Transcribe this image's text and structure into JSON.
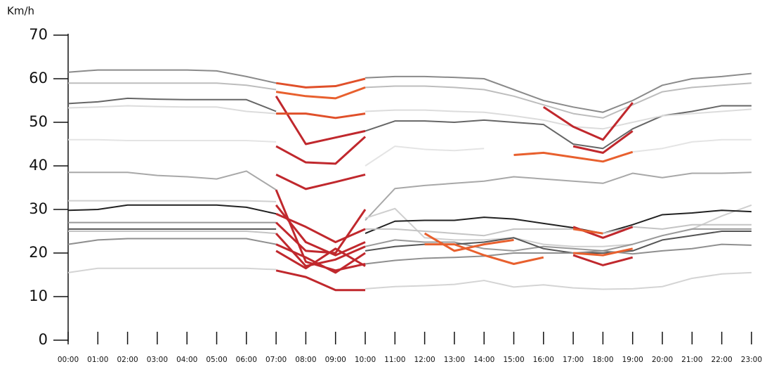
{
  "chart_data": {
    "type": "line",
    "y_label": "Km/h",
    "categories": [
      "00:00",
      "01:00",
      "02:00",
      "03:00",
      "04:00",
      "05:00",
      "06:00",
      "07:00",
      "08:00",
      "09:00",
      "10:00",
      "11:00",
      "12:00",
      "13:00",
      "14:00",
      "15:00",
      "16:00",
      "17:00",
      "18:00",
      "19:00",
      "20:00",
      "21:00",
      "22:00",
      "23:00"
    ],
    "ylim": [
      0,
      70
    ],
    "yticks": [
      0,
      10,
      20,
      30,
      40,
      50,
      60,
      70
    ],
    "series": [
      {
        "color": "#8a8a8a",
        "values": [
          61.5,
          62,
          62,
          62,
          62,
          61.8,
          60.5,
          59,
          null,
          null,
          60.2,
          60.5,
          60.5,
          60.3,
          60,
          57.5,
          55,
          53.5,
          52.3,
          55,
          58.5,
          60,
          60.5,
          61.2
        ]
      },
      {
        "color": "#bdbdbd",
        "values": [
          59,
          59,
          59,
          59,
          59,
          59,
          58.5,
          57.5,
          null,
          null,
          58,
          58.3,
          58.3,
          58,
          57.5,
          56,
          54,
          52,
          51,
          54,
          57,
          58,
          58.5,
          59
        ]
      },
      {
        "color": "#666666",
        "values": [
          54.3,
          54.7,
          55.5,
          55.3,
          55.2,
          55.2,
          55.2,
          52.5,
          null,
          null,
          48,
          50.3,
          50.3,
          50,
          50.5,
          50,
          49.5,
          45,
          44,
          48.5,
          51.5,
          52.5,
          53.8,
          53.8
        ]
      },
      {
        "color": "#dcdcdc",
        "values": [
          53.3,
          53.5,
          53.8,
          53.6,
          53.5,
          53.5,
          52.5,
          52,
          null,
          null,
          52.5,
          52.8,
          52.8,
          52.5,
          52.3,
          51.5,
          50.5,
          49,
          48.5,
          50,
          51.5,
          52,
          52.5,
          53
        ]
      },
      {
        "color": "#e4e4e4",
        "values": [
          46,
          46,
          45.8,
          45.8,
          45.8,
          45.8,
          45.8,
          45.5,
          null,
          null,
          40,
          44.5,
          43.8,
          43.5,
          44,
          null,
          null,
          null,
          null,
          43.2,
          44,
          45.5,
          46,
          46
        ]
      },
      {
        "color": "#a8a8a8",
        "values": [
          38.5,
          38.5,
          38.5,
          37.8,
          37.5,
          37,
          38.8,
          34.5,
          null,
          null,
          27.5,
          34.8,
          35.5,
          36,
          36.5,
          37.5,
          37,
          36.5,
          36,
          38.3,
          37.3,
          38.3,
          38.3,
          38.5
        ]
      },
      {
        "color": "#cfcfcf",
        "values": [
          32,
          32,
          32,
          32,
          32,
          32,
          32,
          31.8,
          null,
          null,
          28,
          30.2,
          23.5,
          23,
          23,
          23.5,
          22,
          21.5,
          21.5,
          22,
          24,
          25.5,
          28.5,
          31
        ]
      },
      {
        "color": "#222222",
        "values": [
          29.8,
          30,
          31,
          31,
          31,
          31,
          30.5,
          29,
          null,
          null,
          24.5,
          27.3,
          27.5,
          27.5,
          28.2,
          27.8,
          26.8,
          25.8,
          24.5,
          26.5,
          28.8,
          29.2,
          29.8,
          29.5
        ]
      },
      {
        "color": "#999999",
        "values": [
          27,
          27,
          27,
          27,
          27,
          27,
          27,
          27,
          null,
          null,
          21.5,
          23,
          22.5,
          22.5,
          21,
          20.5,
          21.5,
          21,
          20.5,
          22,
          24,
          25.5,
          25.5,
          25.5
        ]
      },
      {
        "color": "#555555",
        "values": [
          25.5,
          25.5,
          25.5,
          25.5,
          25.5,
          25.5,
          25.5,
          25.5,
          null,
          null,
          20.5,
          21.5,
          22,
          22,
          22.5,
          23.5,
          21,
          20,
          20,
          20.5,
          23,
          24,
          25,
          25
        ]
      },
      {
        "color": "#c4c4c4",
        "values": [
          25,
          25,
          25,
          25,
          25,
          25,
          25,
          24.5,
          null,
          null,
          25.5,
          25.5,
          25,
          24.5,
          24,
          25.5,
          25.5,
          25.5,
          24.5,
          26,
          25.5,
          26.5,
          26.5,
          26.5
        ]
      },
      {
        "color": "#8f8f8f",
        "values": [
          22,
          23,
          23.3,
          23.3,
          23.3,
          23.3,
          23.3,
          22,
          null,
          null,
          17.5,
          18.3,
          18.8,
          19,
          19.3,
          20,
          20,
          20,
          20.5,
          19.8,
          20.5,
          21,
          22,
          21.8
        ]
      },
      {
        "color": "#d4d4d4",
        "values": [
          15.5,
          16.5,
          16.5,
          16.5,
          16.5,
          16.5,
          16.5,
          16.2,
          null,
          null,
          11.8,
          12.3,
          12.5,
          12.8,
          13.7,
          12.2,
          12.7,
          12,
          11.7,
          11.8,
          12.3,
          14.2,
          15.2,
          15.5
        ]
      },
      {
        "color": "#e0502a",
        "values": [
          null,
          null,
          null,
          null,
          null,
          null,
          null,
          59,
          58,
          58.3,
          60,
          null,
          null,
          null,
          null,
          null,
          null,
          null,
          null,
          null,
          null,
          null,
          null,
          null
        ]
      },
      {
        "color": "#e8602e",
        "values": [
          null,
          null,
          null,
          null,
          null,
          null,
          null,
          57,
          56,
          55.5,
          58,
          null,
          null,
          null,
          null,
          null,
          null,
          null,
          null,
          null,
          null,
          null,
          null,
          null
        ]
      },
      {
        "color": "#c0282d",
        "values": [
          null,
          null,
          null,
          null,
          null,
          null,
          null,
          56,
          45,
          46.5,
          48,
          null,
          null,
          null,
          null,
          null,
          null,
          null,
          null,
          null,
          null,
          null,
          null,
          null
        ]
      },
      {
        "color": "#e0502a",
        "values": [
          null,
          null,
          null,
          null,
          null,
          null,
          null,
          52,
          52,
          51,
          52,
          null,
          null,
          null,
          null,
          null,
          null,
          null,
          null,
          null,
          null,
          null,
          null,
          null
        ]
      },
      {
        "color": "#c0282d",
        "values": [
          null,
          null,
          null,
          null,
          null,
          null,
          null,
          44.5,
          40.8,
          40.5,
          46.7,
          null,
          null,
          null,
          null,
          null,
          null,
          null,
          null,
          null,
          null,
          null,
          null,
          null
        ]
      },
      {
        "color": "#c0282d",
        "values": [
          null,
          null,
          null,
          null,
          null,
          null,
          null,
          38,
          34.7,
          36.3,
          38,
          null,
          null,
          null,
          null,
          null,
          null,
          null,
          null,
          null,
          null,
          null,
          null,
          null
        ]
      },
      {
        "color": "#c0282d",
        "values": [
          null,
          null,
          null,
          null,
          null,
          null,
          null,
          34.5,
          18,
          16,
          17.5,
          null,
          null,
          null,
          null,
          null,
          null,
          null,
          null,
          null,
          null,
          null,
          null,
          null
        ]
      },
      {
        "color": "#c0282d",
        "values": [
          null,
          null,
          null,
          null,
          null,
          null,
          null,
          31,
          22.5,
          19.5,
          22.5,
          null,
          null,
          null,
          null,
          null,
          null,
          null,
          null,
          null,
          null,
          null,
          null,
          null
        ]
      },
      {
        "color": "#c0282d",
        "values": [
          null,
          null,
          null,
          null,
          null,
          null,
          null,
          29,
          26,
          22.5,
          25.5,
          null,
          null,
          null,
          null,
          null,
          null,
          null,
          null,
          null,
          null,
          null,
          null,
          null
        ]
      },
      {
        "color": "#c0282d",
        "values": [
          null,
          null,
          null,
          null,
          null,
          null,
          null,
          27,
          20.5,
          20,
          30,
          null,
          null,
          null,
          null,
          null,
          null,
          null,
          null,
          null,
          null,
          null,
          null,
          null
        ]
      },
      {
        "color": "#c0282d",
        "values": [
          null,
          null,
          null,
          null,
          null,
          null,
          null,
          24.5,
          17,
          18.5,
          21.5,
          null,
          null,
          null,
          null,
          null,
          null,
          null,
          null,
          null,
          null,
          null,
          null,
          null
        ]
      },
      {
        "color": "#c0282d",
        "values": [
          null,
          null,
          null,
          null,
          null,
          null,
          null,
          22,
          19,
          15.5,
          20,
          null,
          null,
          null,
          null,
          null,
          null,
          null,
          null,
          null,
          null,
          null,
          null,
          null
        ]
      },
      {
        "color": "#c0282d",
        "values": [
          null,
          null,
          null,
          null,
          null,
          null,
          null,
          20.5,
          16.5,
          21,
          17,
          null,
          null,
          null,
          null,
          null,
          null,
          null,
          null,
          null,
          null,
          null,
          null,
          null
        ]
      },
      {
        "color": "#c0282d",
        "values": [
          null,
          null,
          null,
          null,
          null,
          null,
          null,
          16,
          14.5,
          11.5,
          11.5,
          null,
          null,
          null,
          null,
          null,
          null,
          null,
          null,
          null,
          null,
          null,
          null,
          null
        ]
      },
      {
        "color": "#e8602e",
        "values": [
          null,
          null,
          null,
          null,
          null,
          null,
          null,
          null,
          null,
          null,
          null,
          null,
          24.5,
          20.5,
          22,
          23,
          null,
          null,
          null,
          null,
          null,
          null,
          null,
          null
        ]
      },
      {
        "color": "#e8602e",
        "values": [
          null,
          null,
          null,
          null,
          null,
          null,
          null,
          null,
          null,
          null,
          null,
          null,
          22,
          22,
          19.5,
          17.5,
          19,
          null,
          null,
          null,
          null,
          null,
          null,
          null
        ]
      },
      {
        "color": "#e8602e",
        "values": [
          null,
          null,
          null,
          null,
          null,
          null,
          null,
          null,
          null,
          null,
          null,
          null,
          null,
          null,
          null,
          42.5,
          43,
          42,
          41,
          43.2,
          null,
          null,
          null,
          null
        ]
      },
      {
        "color": "#c0282d",
        "values": [
          null,
          null,
          null,
          null,
          null,
          null,
          null,
          null,
          null,
          null,
          null,
          null,
          null,
          null,
          null,
          null,
          53.5,
          49,
          46,
          54.5,
          null,
          null,
          null,
          null
        ]
      },
      {
        "color": "#c0282d",
        "values": [
          null,
          null,
          null,
          null,
          null,
          null,
          null,
          null,
          null,
          null,
          null,
          null,
          null,
          null,
          null,
          null,
          null,
          44.5,
          43,
          48,
          null,
          null,
          null,
          null
        ]
      },
      {
        "color": "#c0282d",
        "values": [
          null,
          null,
          null,
          null,
          null,
          null,
          null,
          null,
          null,
          null,
          null,
          null,
          null,
          null,
          null,
          null,
          null,
          26,
          23.5,
          26,
          null,
          null,
          null,
          null
        ]
      },
      {
        "color": "#e8602e",
        "values": [
          null,
          null,
          null,
          null,
          null,
          null,
          null,
          null,
          null,
          null,
          null,
          null,
          null,
          null,
          null,
          null,
          null,
          25.5,
          24.5,
          null,
          null,
          null,
          null,
          null
        ]
      },
      {
        "color": "#c0282d",
        "values": [
          null,
          null,
          null,
          null,
          null,
          null,
          null,
          null,
          null,
          null,
          null,
          null,
          null,
          null,
          null,
          null,
          null,
          19.5,
          17.2,
          19,
          null,
          null,
          null,
          null
        ]
      },
      {
        "color": "#e8602e",
        "values": [
          null,
          null,
          null,
          null,
          null,
          null,
          null,
          null,
          null,
          null,
          null,
          null,
          null,
          null,
          null,
          null,
          null,
          20,
          19.5,
          21,
          null,
          null,
          null,
          null
        ]
      }
    ]
  }
}
